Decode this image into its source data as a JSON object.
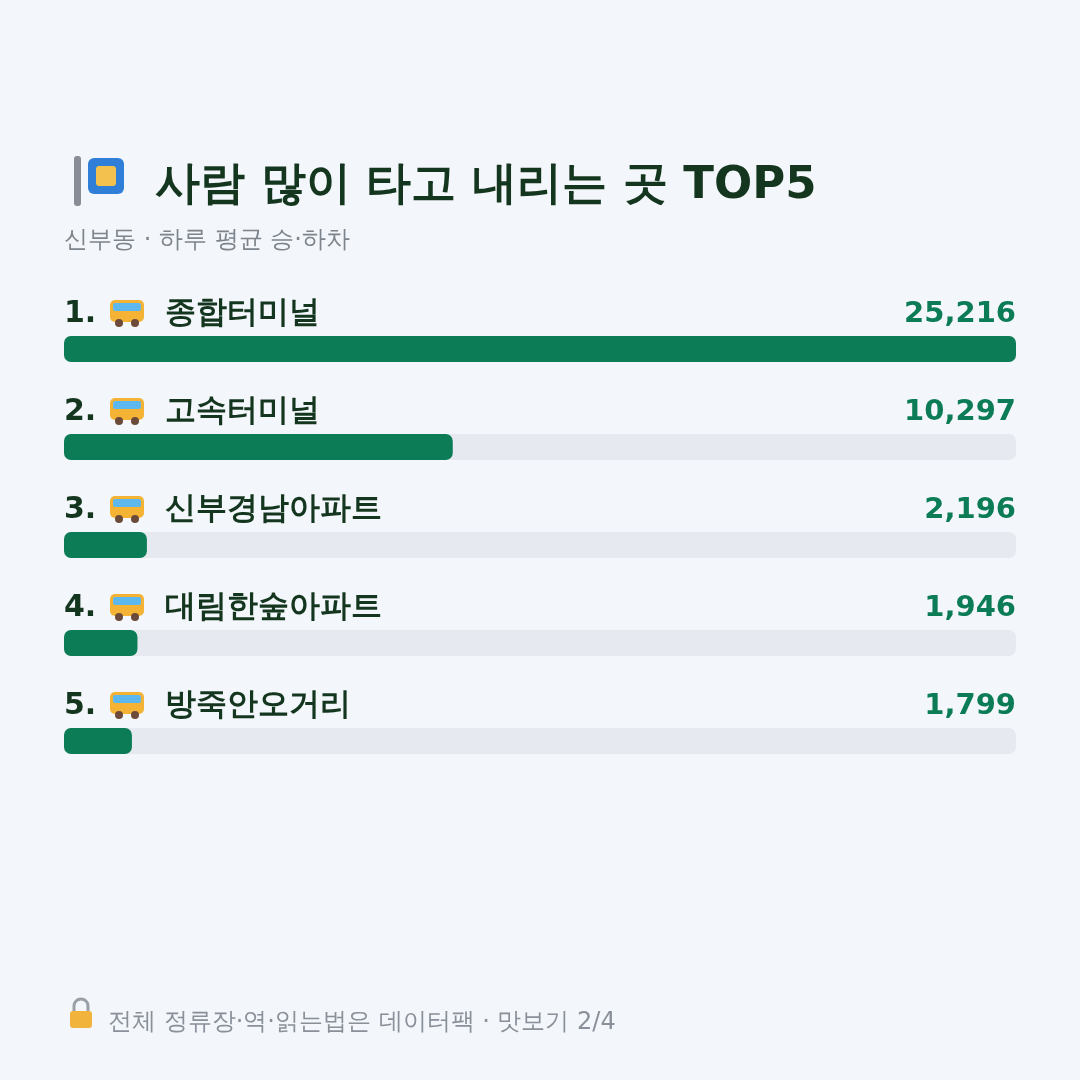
{
  "chart_data": {
    "type": "bar",
    "orientation": "horizontal",
    "title": "사람 많이 타고 내리는 곳 TOP5",
    "subtitle": "신부동 · 하루 평균 승·하차",
    "categories": [
      "1. 종합터미널",
      "2. 고속터미널",
      "3. 신부경남아파트",
      "4. 대림한숲아파트",
      "5. 방죽안오거리"
    ],
    "values": [
      25216,
      10297,
      2196,
      1946,
      1799
    ],
    "color": "#0b7c55",
    "value_labels": [
      "25,216",
      "10,297",
      "2,196",
      "1,946",
      "1,799"
    ],
    "annotations": [
      "전체 정류장·역·읽는법은 데이터팩 · 맛보기 2/4"
    ]
  }
}
